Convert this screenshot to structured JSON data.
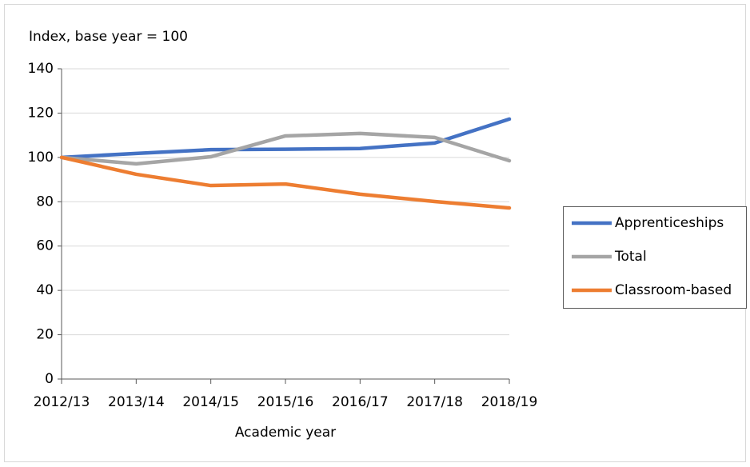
{
  "chart_data": {
    "type": "line",
    "title": "Index, base year = 100",
    "x_label": "Academic year",
    "categories": [
      "2012/13",
      "2013/14",
      "2014/15",
      "2015/16",
      "2016/17",
      "2017/18",
      "2018/19"
    ],
    "series": [
      {
        "name": "Apprenticeships",
        "color": "#4472c4",
        "values": [
          100,
          101.8,
          103.5,
          103.7,
          104,
          106.5,
          117.3
        ]
      },
      {
        "name": "Total",
        "color": "#a5a5a5",
        "values": [
          100,
          97.1,
          100.3,
          109.7,
          110.8,
          109,
          98.5
        ]
      },
      {
        "name": "Classroom-based",
        "color": "#ed7d31",
        "values": [
          100,
          92.4,
          87.3,
          88,
          83.4,
          80.1,
          77.2
        ]
      }
    ],
    "ylim": [
      0,
      140
    ],
    "yticks": [
      0,
      20,
      40,
      60,
      80,
      100,
      120,
      140
    ],
    "grid": true,
    "legend": "right"
  }
}
